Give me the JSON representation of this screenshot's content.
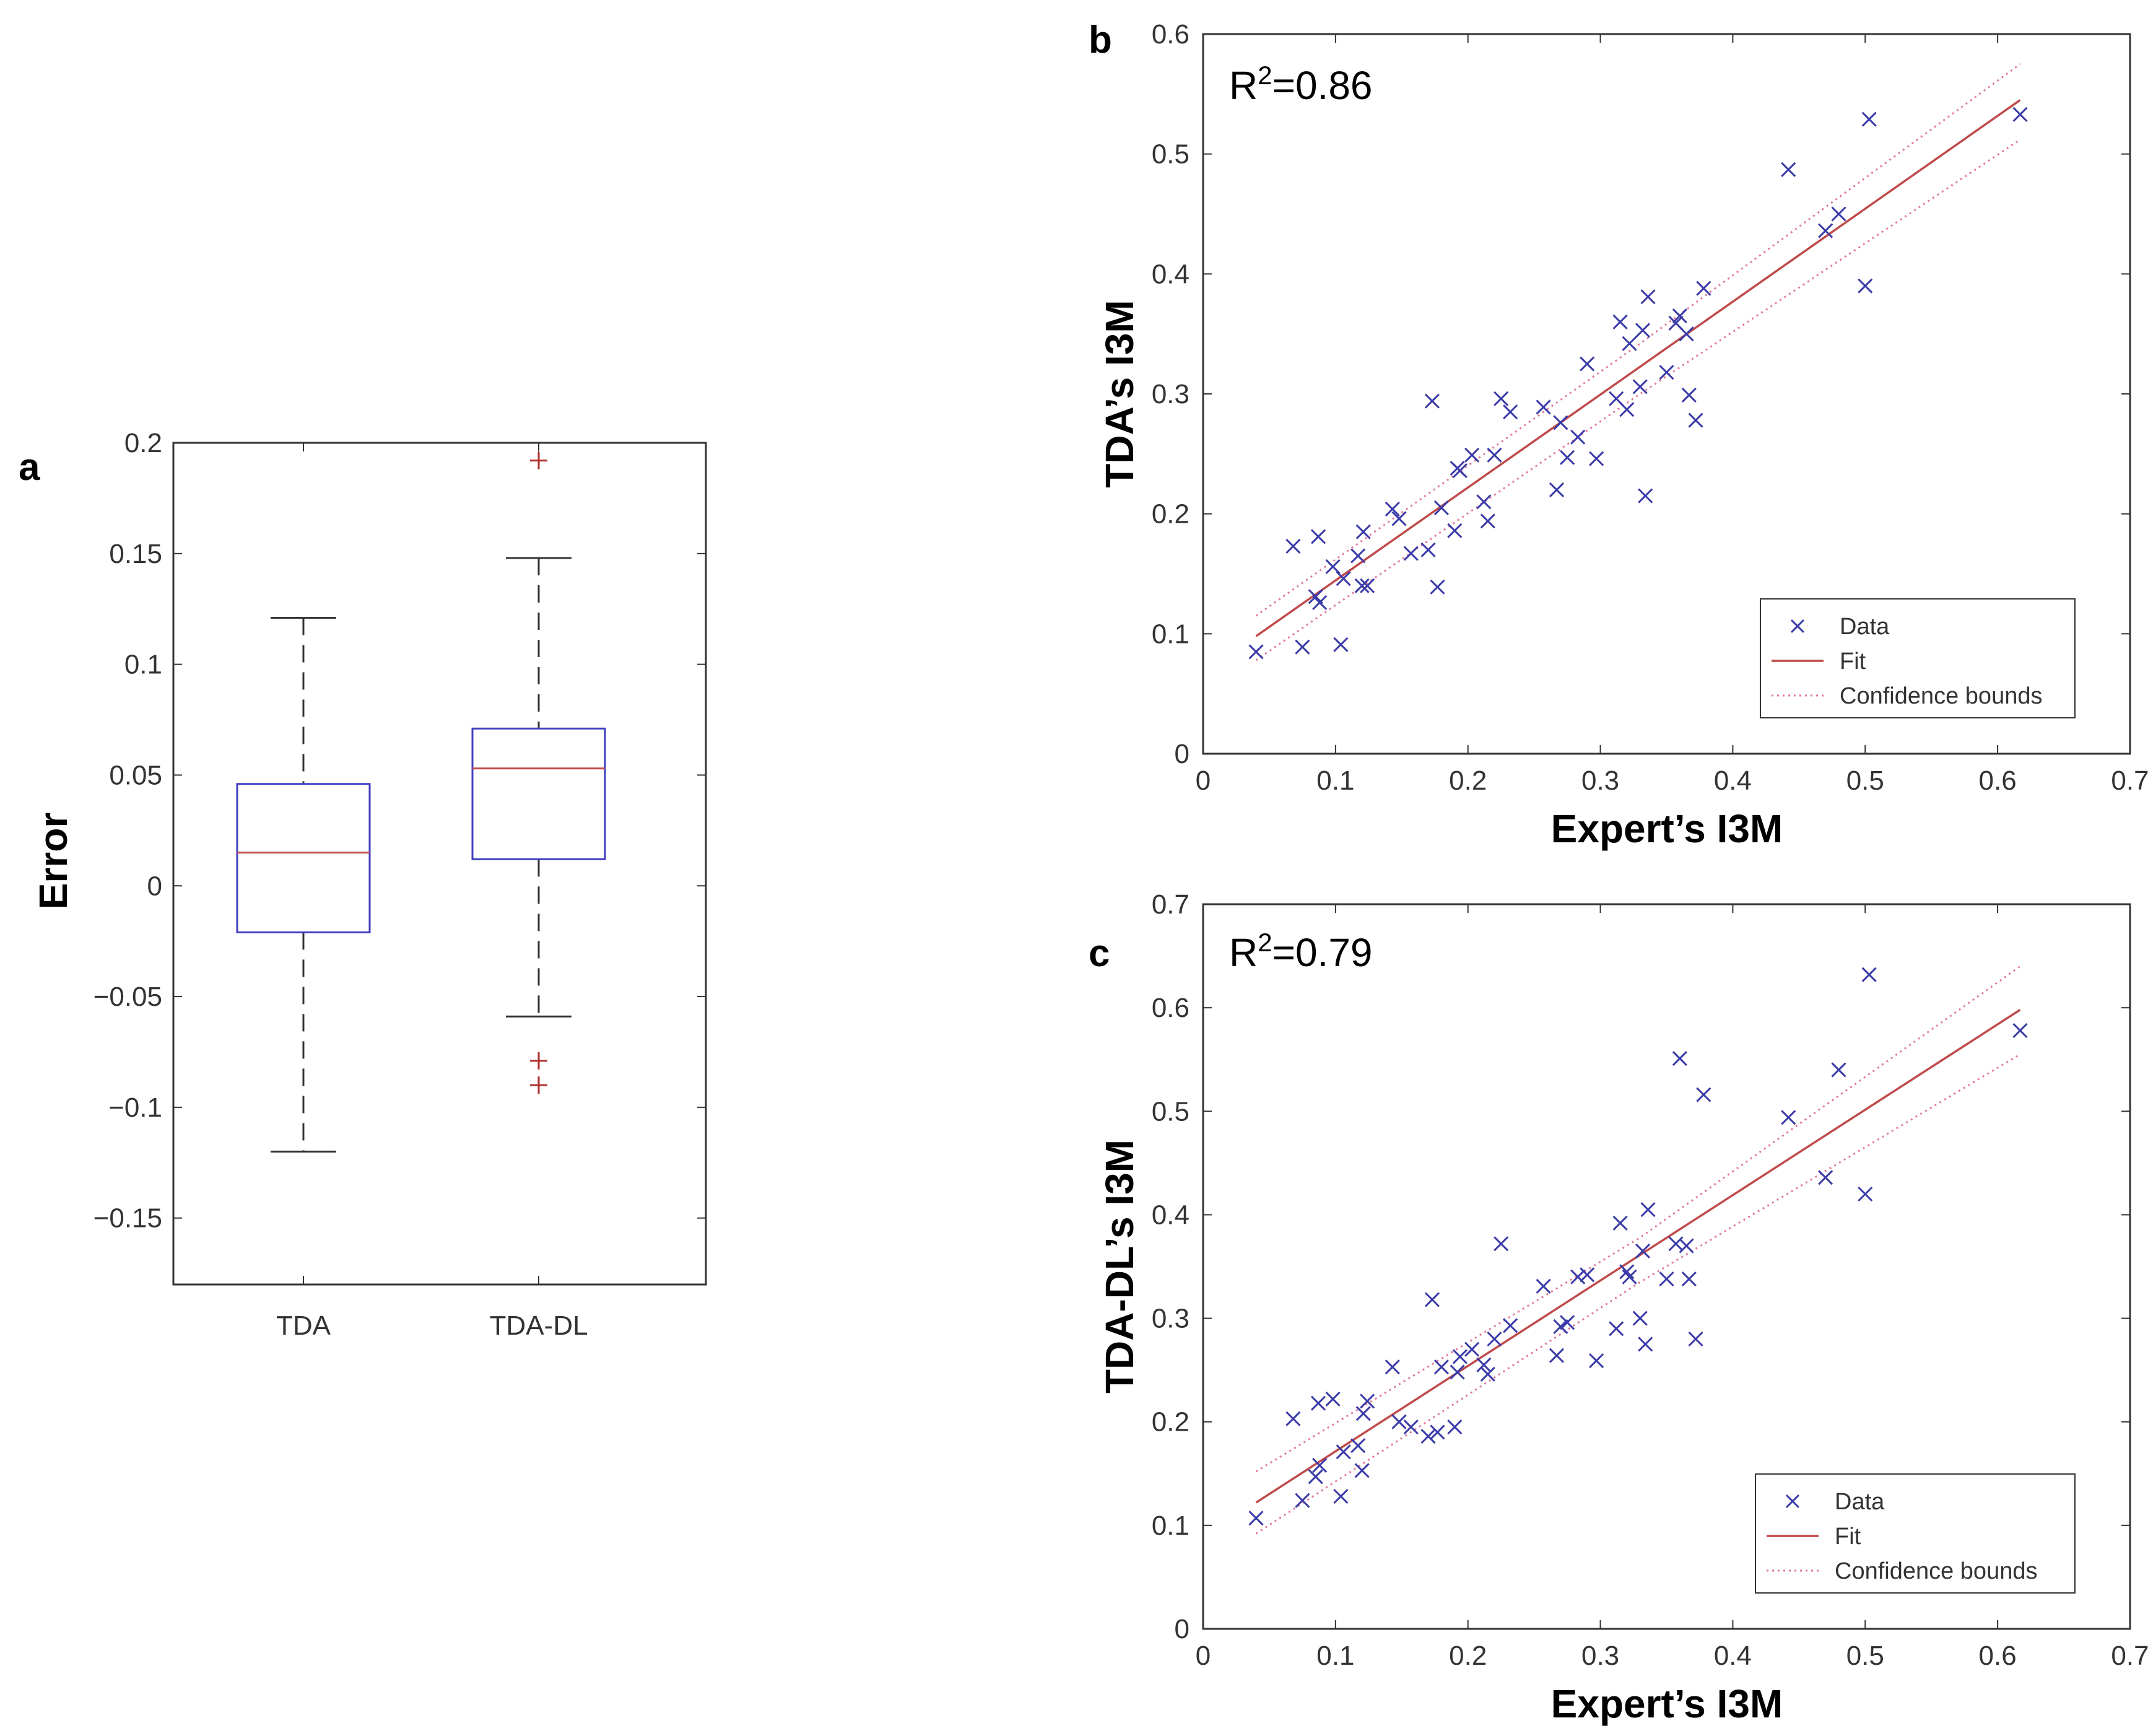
{
  "colors": {
    "box": "#3f3fbf",
    "median": "#c05050",
    "whisker": "#333333",
    "outlier": "#b03030",
    "marker": "#3a3aa8",
    "fit": "#c04a4a",
    "bounds": "#e07a9a",
    "axis": "#333333"
  },
  "chart_data": [
    {
      "panel": "a",
      "type": "box",
      "ylabel": "Error",
      "ylim": [
        -0.18,
        0.2
      ],
      "yticks": [
        "0.2",
        "0.15",
        "0.1",
        "0.05",
        "0",
        "−0.05",
        "−0.1",
        "−0.15"
      ],
      "categories": [
        "TDA",
        "TDA-DL"
      ],
      "boxes": [
        {
          "name": "TDA",
          "min": -0.12,
          "q1": -0.021,
          "median": 0.015,
          "q3": 0.046,
          "max": 0.121,
          "outliers": []
        },
        {
          "name": "TDA-DL",
          "min": -0.059,
          "q1": 0.012,
          "median": 0.053,
          "q3": 0.071,
          "max": 0.148,
          "outliers": [
            0.192,
            -0.079,
            -0.09
          ]
        }
      ]
    },
    {
      "panel": "b",
      "type": "scatter",
      "annotation": {
        "base": "R",
        "sup": "2",
        "rest": "=0.86"
      },
      "xlabel": "Expert’s I3M",
      "ylabel": "TDA’s I3M",
      "xlim": [
        0,
        0.7
      ],
      "ylim": [
        0,
        0.6
      ],
      "xticks": [
        "0",
        "0.1",
        "0.2",
        "0.3",
        "0.4",
        "0.5",
        "0.6",
        "0.7"
      ],
      "yticks": [
        "0",
        "0.1",
        "0.2",
        "0.3",
        "0.4",
        "0.5",
        "0.6"
      ],
      "legend": {
        "position": "bottom-right",
        "entries": [
          "Data",
          "Fit",
          "Confidence bounds"
        ]
      },
      "fit": {
        "x": [
          0.04,
          0.617
        ],
        "y": [
          0.098,
          0.545
        ]
      },
      "bounds_upper": {
        "x": [
          0.04,
          0.33,
          0.617
        ],
        "y": [
          0.115,
          0.342,
          0.575
        ]
      },
      "bounds_lower": {
        "x": [
          0.04,
          0.33,
          0.617
        ],
        "y": [
          0.078,
          0.3,
          0.512
        ]
      },
      "points": [
        [
          0.04,
          0.085
        ],
        [
          0.068,
          0.173
        ],
        [
          0.075,
          0.089
        ],
        [
          0.085,
          0.131
        ],
        [
          0.087,
          0.181
        ],
        [
          0.088,
          0.126
        ],
        [
          0.098,
          0.156
        ],
        [
          0.104,
          0.091
        ],
        [
          0.106,
          0.146
        ],
        [
          0.117,
          0.165
        ],
        [
          0.12,
          0.14
        ],
        [
          0.121,
          0.185
        ],
        [
          0.124,
          0.14
        ],
        [
          0.143,
          0.204
        ],
        [
          0.148,
          0.196
        ],
        [
          0.157,
          0.167
        ],
        [
          0.17,
          0.17
        ],
        [
          0.173,
          0.294
        ],
        [
          0.177,
          0.139
        ],
        [
          0.18,
          0.205
        ],
        [
          0.19,
          0.186
        ],
        [
          0.192,
          0.238
        ],
        [
          0.194,
          0.236
        ],
        [
          0.203,
          0.249
        ],
        [
          0.212,
          0.21
        ],
        [
          0.215,
          0.194
        ],
        [
          0.22,
          0.249
        ],
        [
          0.225,
          0.296
        ],
        [
          0.232,
          0.285
        ],
        [
          0.257,
          0.289
        ],
        [
          0.267,
          0.22
        ],
        [
          0.27,
          0.276
        ],
        [
          0.275,
          0.247
        ],
        [
          0.283,
          0.264
        ],
        [
          0.29,
          0.325
        ],
        [
          0.297,
          0.246
        ],
        [
          0.312,
          0.296
        ],
        [
          0.315,
          0.36
        ],
        [
          0.32,
          0.287
        ],
        [
          0.322,
          0.342
        ],
        [
          0.33,
          0.306
        ],
        [
          0.332,
          0.353
        ],
        [
          0.334,
          0.215
        ],
        [
          0.336,
          0.381
        ],
        [
          0.35,
          0.318
        ],
        [
          0.357,
          0.359
        ],
        [
          0.36,
          0.365
        ],
        [
          0.365,
          0.35
        ],
        [
          0.367,
          0.299
        ],
        [
          0.372,
          0.278
        ],
        [
          0.378,
          0.388
        ],
        [
          0.442,
          0.487
        ],
        [
          0.47,
          0.436
        ],
        [
          0.48,
          0.45
        ],
        [
          0.5,
          0.39
        ],
        [
          0.503,
          0.529
        ],
        [
          0.617,
          0.533
        ]
      ]
    },
    {
      "panel": "c",
      "type": "scatter",
      "annotation": {
        "base": "R",
        "sup": "2",
        "rest": "=0.79"
      },
      "xlabel": "Expert’s I3M",
      "ylabel": "TDA-DL’s I3M",
      "xlim": [
        0,
        0.7
      ],
      "ylim": [
        0,
        0.7
      ],
      "xticks": [
        "0",
        "0.1",
        "0.2",
        "0.3",
        "0.4",
        "0.5",
        "0.6",
        "0.7"
      ],
      "yticks": [
        "0",
        "0.1",
        "0.2",
        "0.3",
        "0.4",
        "0.5",
        "0.6",
        "0.7"
      ],
      "legend": {
        "position": "bottom-right",
        "entries": [
          "Data",
          "Fit",
          "Confidence bounds"
        ]
      },
      "fit": {
        "x": [
          0.04,
          0.617
        ],
        "y": [
          0.122,
          0.598
        ]
      },
      "bounds_upper": {
        "x": [
          0.04,
          0.33,
          0.617
        ],
        "y": [
          0.152,
          0.378,
          0.64
        ]
      },
      "bounds_lower": {
        "x": [
          0.04,
          0.33,
          0.617
        ],
        "y": [
          0.092,
          0.335,
          0.555
        ]
      },
      "points": [
        [
          0.04,
          0.107
        ],
        [
          0.068,
          0.203
        ],
        [
          0.075,
          0.124
        ],
        [
          0.085,
          0.147
        ],
        [
          0.087,
          0.218
        ],
        [
          0.088,
          0.158
        ],
        [
          0.098,
          0.222
        ],
        [
          0.104,
          0.128
        ],
        [
          0.106,
          0.171
        ],
        [
          0.117,
          0.177
        ],
        [
          0.12,
          0.153
        ],
        [
          0.121,
          0.208
        ],
        [
          0.124,
          0.22
        ],
        [
          0.143,
          0.253
        ],
        [
          0.148,
          0.2
        ],
        [
          0.157,
          0.195
        ],
        [
          0.17,
          0.186
        ],
        [
          0.173,
          0.318
        ],
        [
          0.177,
          0.19
        ],
        [
          0.18,
          0.253
        ],
        [
          0.19,
          0.195
        ],
        [
          0.192,
          0.248
        ],
        [
          0.194,
          0.263
        ],
        [
          0.203,
          0.27
        ],
        [
          0.212,
          0.255
        ],
        [
          0.215,
          0.246
        ],
        [
          0.22,
          0.28
        ],
        [
          0.225,
          0.372
        ],
        [
          0.232,
          0.293
        ],
        [
          0.257,
          0.331
        ],
        [
          0.267,
          0.264
        ],
        [
          0.27,
          0.292
        ],
        [
          0.275,
          0.296
        ],
        [
          0.283,
          0.34
        ],
        [
          0.29,
          0.342
        ],
        [
          0.297,
          0.259
        ],
        [
          0.312,
          0.29
        ],
        [
          0.315,
          0.392
        ],
        [
          0.32,
          0.345
        ],
        [
          0.322,
          0.34
        ],
        [
          0.33,
          0.3
        ],
        [
          0.332,
          0.365
        ],
        [
          0.334,
          0.275
        ],
        [
          0.336,
          0.405
        ],
        [
          0.35,
          0.338
        ],
        [
          0.357,
          0.372
        ],
        [
          0.36,
          0.551
        ],
        [
          0.365,
          0.37
        ],
        [
          0.367,
          0.338
        ],
        [
          0.372,
          0.28
        ],
        [
          0.378,
          0.516
        ],
        [
          0.442,
          0.494
        ],
        [
          0.47,
          0.436
        ],
        [
          0.48,
          0.54
        ],
        [
          0.5,
          0.42
        ],
        [
          0.503,
          0.632
        ],
        [
          0.617,
          0.578
        ]
      ]
    }
  ]
}
